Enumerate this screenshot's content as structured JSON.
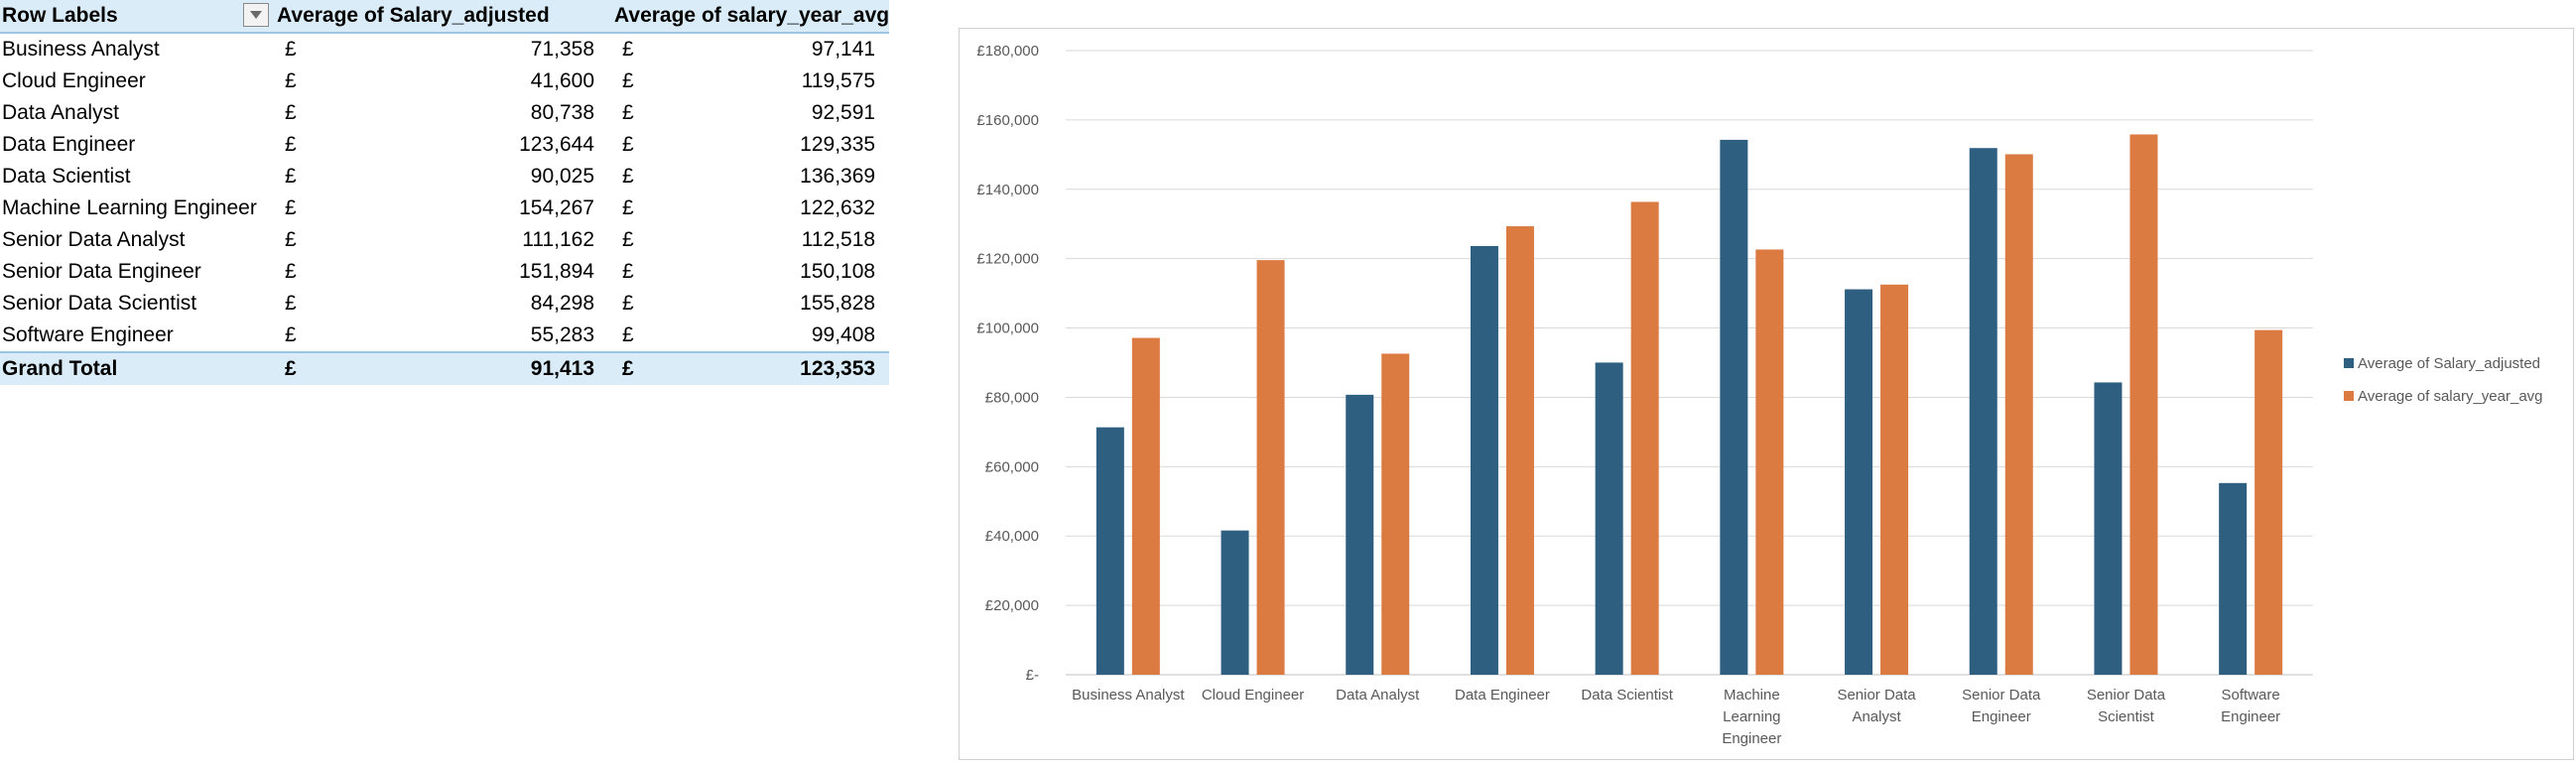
{
  "table": {
    "headers": {
      "row_labels": "Row Labels",
      "col1": "Average of Salary_adjusted",
      "col2": "Average of salary_year_avg"
    },
    "currency_symbol": "£",
    "rows": [
      {
        "label": "Business Analyst",
        "salary_adjusted": "71,358",
        "salary_year_avg": "97,141"
      },
      {
        "label": "Cloud Engineer",
        "salary_adjusted": "41,600",
        "salary_year_avg": "119,575"
      },
      {
        "label": "Data Analyst",
        "salary_adjusted": "80,738",
        "salary_year_avg": "92,591"
      },
      {
        "label": "Data Engineer",
        "salary_adjusted": "123,644",
        "salary_year_avg": "129,335"
      },
      {
        "label": "Data Scientist",
        "salary_adjusted": "90,025",
        "salary_year_avg": "136,369"
      },
      {
        "label": "Machine Learning Engineer",
        "salary_adjusted": "154,267",
        "salary_year_avg": "122,632"
      },
      {
        "label": "Senior Data Analyst",
        "salary_adjusted": "111,162",
        "salary_year_avg": "112,518"
      },
      {
        "label": "Senior Data Engineer",
        "salary_adjusted": "151,894",
        "salary_year_avg": "150,108"
      },
      {
        "label": "Senior Data Scientist",
        "salary_adjusted": "84,298",
        "salary_year_avg": "155,828"
      },
      {
        "label": "Software Engineer",
        "salary_adjusted": "55,283",
        "salary_year_avg": "99,408"
      }
    ],
    "total": {
      "label": "Grand Total",
      "salary_adjusted": "91,413",
      "salary_year_avg": "123,353"
    }
  },
  "chart_data": {
    "type": "bar",
    "title": "",
    "xlabel": "",
    "ylabel": "",
    "categories": [
      [
        "Business Analyst"
      ],
      [
        "Cloud Engineer"
      ],
      [
        "Data Analyst"
      ],
      [
        "Data Engineer"
      ],
      [
        "Data Scientist"
      ],
      [
        "Machine",
        "Learning",
        "Engineer"
      ],
      [
        "Senior Data",
        "Analyst"
      ],
      [
        "Senior Data",
        "Engineer"
      ],
      [
        "Senior Data",
        "Scientist"
      ],
      [
        "Software",
        "Engineer"
      ]
    ],
    "series": [
      {
        "name": "Average of Salary_adjusted",
        "color": "#2e5f80",
        "values": [
          71358,
          41600,
          80738,
          123644,
          90025,
          154267,
          111162,
          151894,
          84298,
          55283
        ]
      },
      {
        "name": "Average of salary_year_avg",
        "color": "#db7a41",
        "values": [
          97141,
          119575,
          92591,
          129335,
          136369,
          122632,
          112518,
          150108,
          155828,
          99408
        ]
      }
    ],
    "ylim": [
      0,
      180000
    ],
    "yticks": [
      0,
      20000,
      40000,
      60000,
      80000,
      100000,
      120000,
      140000,
      160000,
      180000
    ],
    "ytick_labels": [
      "£-",
      "£20,000",
      "£40,000",
      "£60,000",
      "£80,000",
      "£100,000",
      "£120,000",
      "£140,000",
      "£160,000",
      "£180,000"
    ],
    "grid": true,
    "legend_position": "right"
  }
}
